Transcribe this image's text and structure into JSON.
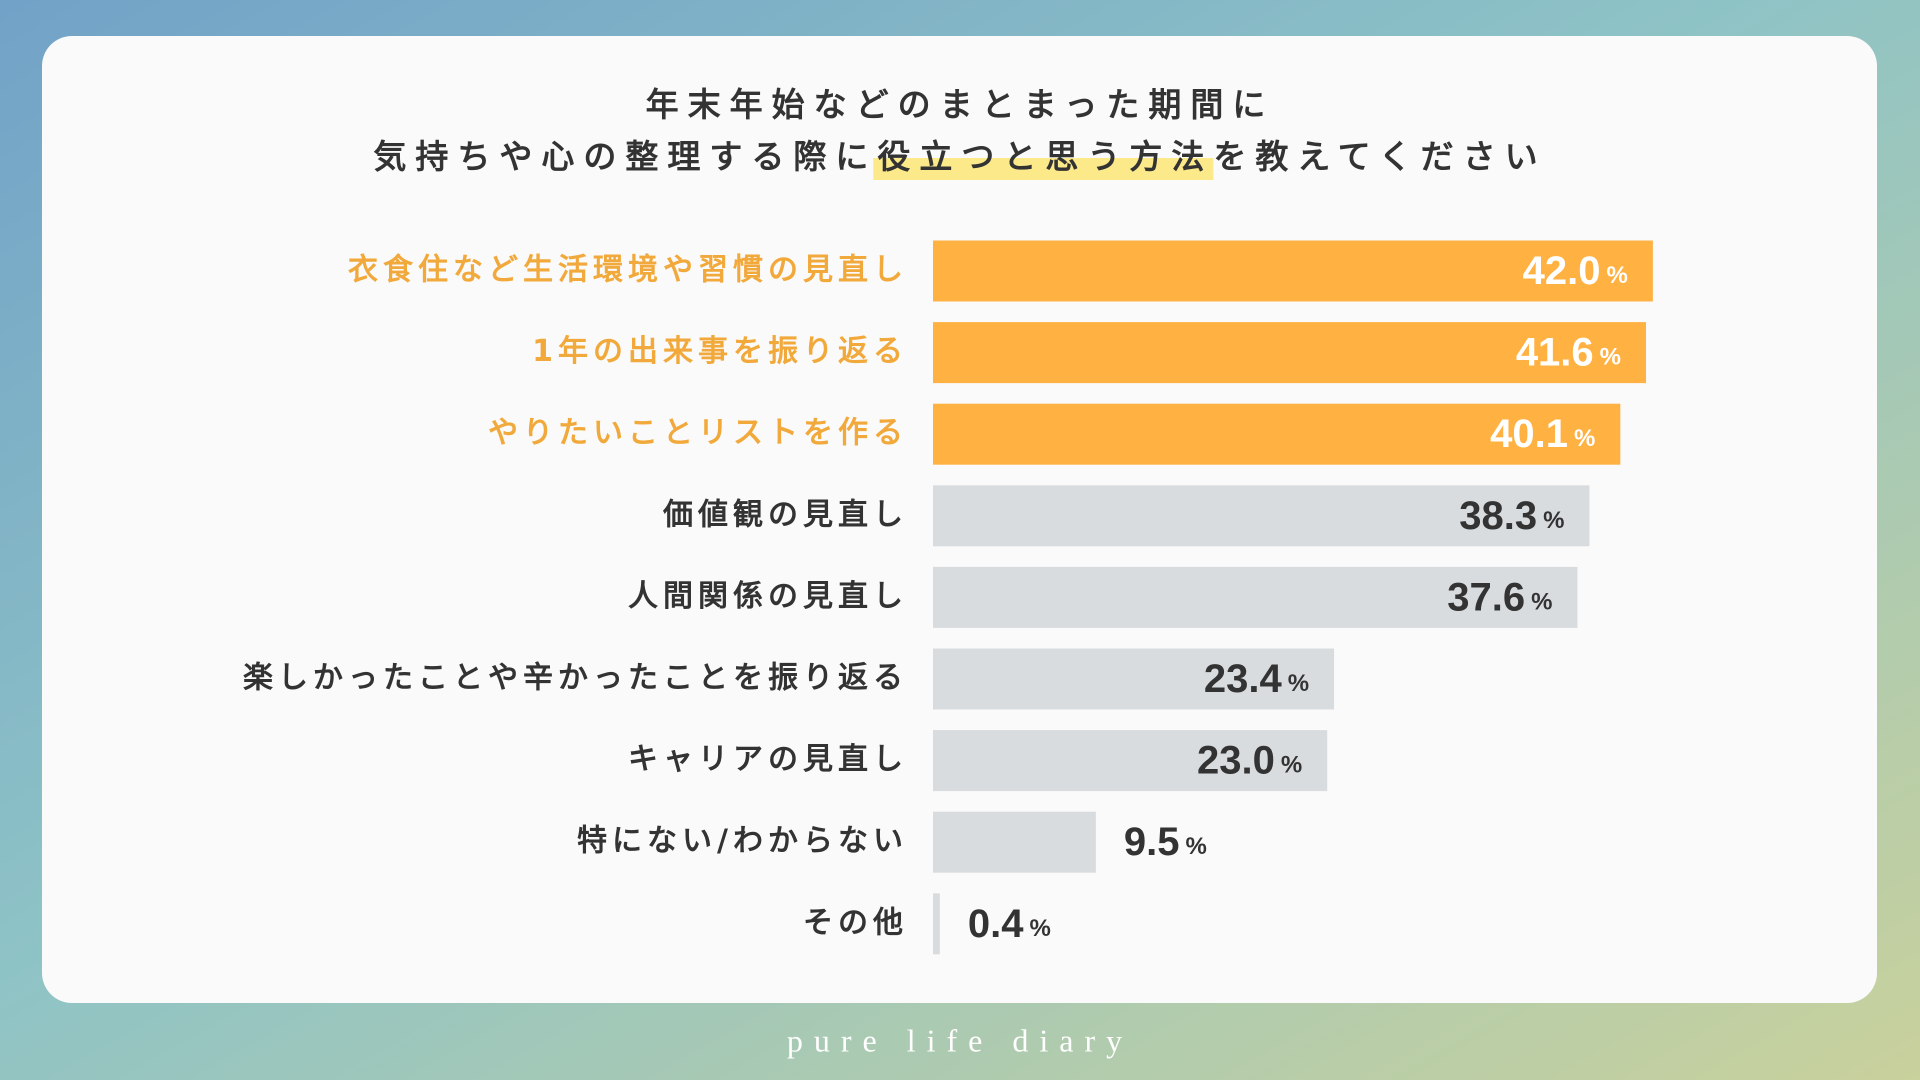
{
  "chart_data": {
    "type": "bar",
    "orientation": "horizontal",
    "title_lines": [
      [
        "年末年始などのまとまった期間に"
      ],
      [
        "気持ちや心の整理する際に",
        "役立つと思う方法",
        "を教えてください"
      ]
    ],
    "title_highlight_color": "#fbe98a",
    "categories": [
      "衣食住など生活環境や習慣の見直し",
      "1年の出来事を振り返る",
      "やりたいことリストを作る",
      "価値観の見直し",
      "人間関係の見直し",
      "楽しかったことや辛かったことを振り返る",
      "キャリアの見直し",
      "特にない/わからない",
      "その他"
    ],
    "values": [
      42.0,
      41.6,
      40.1,
      38.3,
      37.6,
      23.4,
      23.0,
      9.5,
      0.4
    ],
    "value_labels": [
      "42.0",
      "41.6",
      "40.1",
      "38.3",
      "37.6",
      "23.4",
      "23.0",
      "9.5",
      "0.4"
    ],
    "value_suffix": "%",
    "colors": [
      "#ffb142",
      "#ffb142",
      "#ffb142",
      "#d9dcdf",
      "#d9dcdf",
      "#d9dcdf",
      "#d9dcdf",
      "#d9dcdf",
      "#d9dcdf"
    ],
    "category_colors": [
      "#f2a93b",
      "#f2a93b",
      "#f2a93b",
      "#333333",
      "#333333",
      "#333333",
      "#333333",
      "#333333",
      "#333333"
    ],
    "value_label_colors": [
      "#ffffff",
      "#ffffff",
      "#ffffff",
      "#333333",
      "#333333",
      "#333333",
      "#333333",
      "#333333",
      "#333333"
    ],
    "footer": "pure life diary"
  }
}
